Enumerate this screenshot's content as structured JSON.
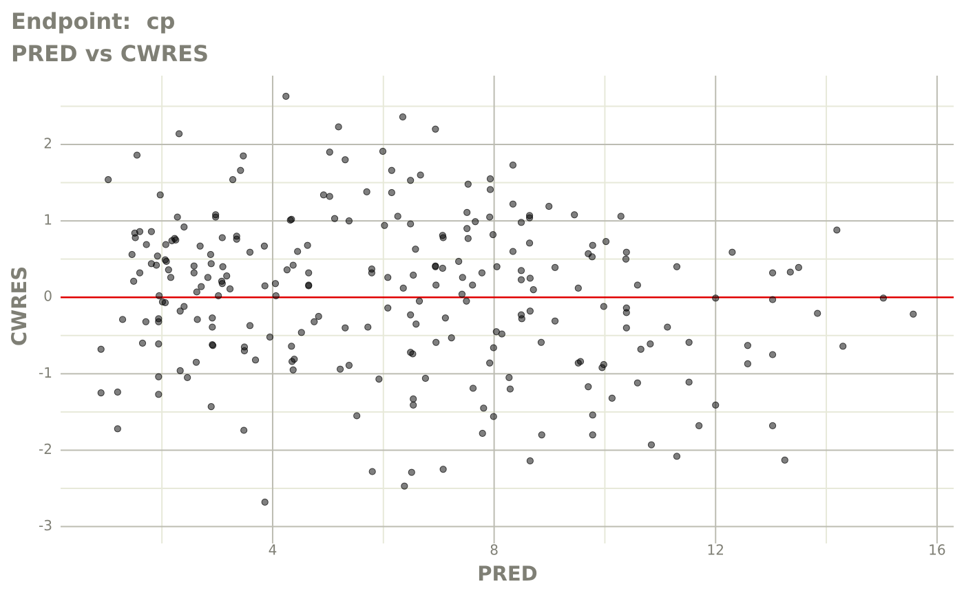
{
  "chart_data": {
    "type": "scatter",
    "title": "Endpoint:  cp",
    "subtitle": "PRED vs CWRES",
    "x_label": "PRED",
    "y_label": "CWRES",
    "color": "#000000",
    "opacity": 0.5,
    "hline": 0,
    "hline_color": "#e00000",
    "grid": true,
    "xlim": [
      0.17,
      16.3
    ],
    "ylim": [
      -3.22,
      2.9
    ],
    "xticks": [
      4,
      8,
      12,
      16
    ],
    "yticks": [
      -3,
      -2,
      -1,
      0,
      1,
      2
    ],
    "x_minor_ticks": [
      2,
      6,
      10,
      14
    ],
    "y_minor_ticks": [
      -2.5,
      -1.5,
      -0.5,
      0.5,
      1.5,
      2.5
    ],
    "x": [
      0.9,
      0.9,
      1.03,
      1.2,
      1.2,
      1.29,
      1.49,
      1.46,
      1.51,
      1.52,
      1.55,
      1.6,
      1.6,
      1.65,
      1.71,
      1.72,
      1.81,
      1.81,
      1.9,
      1.92,
      1.94,
      1.94,
      1.94,
      1.94,
      1.94,
      1.95,
      1.97,
      2.01,
      2.06,
      2.06,
      2.07,
      2.08,
      2.12,
      2.16,
      2.18,
      2.23,
      2.25,
      2.28,
      2.31,
      2.33,
      2.33,
      2.4,
      2.4,
      2.46,
      2.58,
      2.58,
      2.62,
      2.63,
      2.64,
      2.69,
      2.71,
      2.83,
      2.88,
      2.89,
      2.91,
      2.91,
      2.91,
      2.89,
      2.92,
      2.97,
      2.97,
      3.02,
      3.08,
      3.09,
      3.09,
      3.1,
      3.17,
      3.23,
      3.28,
      3.35,
      3.35,
      3.42,
      3.47,
      3.48,
      3.49,
      3.49,
      3.59,
      3.59,
      3.69,
      3.85,
      3.86,
      3.86,
      3.95,
      4.05,
      4.06,
      4.24,
      4.26,
      4.32,
      4.34,
      4.34,
      4.35,
      4.37,
      4.39,
      4.37,
      4.45,
      4.52,
      4.63,
      4.65,
      4.65,
      4.65,
      4.75,
      4.83,
      4.92,
      5.03,
      5.03,
      5.12,
      5.19,
      5.22,
      5.31,
      5.31,
      5.38,
      5.38,
      5.52,
      5.7,
      5.72,
      5.79,
      5.79,
      5.8,
      5.92,
      5.99,
      6.02,
      6.08,
      6.08,
      6.15,
      6.15,
      6.26,
      6.35,
      6.36,
      6.38,
      6.49,
      6.49,
      6.49,
      6.49,
      6.53,
      6.54,
      6.54,
      6.54,
      6.51,
      6.58,
      6.59,
      6.65,
      6.67,
      6.76,
      6.94,
      6.94,
      6.94,
      6.95,
      6.95,
      7.07,
      7.07,
      7.08,
      7.08,
      7.12,
      7.23,
      7.36,
      7.42,
      7.43,
      7.5,
      7.51,
      7.51,
      7.53,
      7.53,
      7.61,
      7.62,
      7.66,
      7.78,
      7.81,
      7.79,
      7.93,
      7.93,
      7.92,
      7.92,
      7.98,
      7.99,
      7.99,
      8.04,
      8.05,
      8.14,
      8.27,
      8.29,
      8.34,
      8.34,
      8.34,
      8.49,
      8.49,
      8.49,
      8.49,
      8.5,
      8.64,
      8.64,
      8.64,
      8.65,
      8.65,
      8.65,
      8.71,
      8.85,
      8.86,
      8.99,
      9.1,
      9.1,
      9.45,
      9.52,
      9.52,
      9.56,
      9.7,
      9.7,
      9.77,
      9.78,
      9.78,
      9.78,
      9.95,
      9.98,
      9.98,
      10.02,
      10.13,
      10.29,
      10.38,
      10.39,
      10.39,
      10.39,
      10.39,
      10.59,
      10.59,
      10.65,
      10.82,
      10.84,
      11.13,
      11.3,
      11.3,
      11.52,
      11.52,
      11.7,
      12.0,
      12.0,
      12.3,
      12.58,
      12.58,
      13.03,
      13.03,
      13.03,
      13.03,
      13.25,
      13.35,
      13.5,
      13.84,
      14.19,
      14.3,
      15.03,
      15.57
    ],
    "values": [
      -0.68,
      -1.25,
      1.54,
      -1.24,
      -1.72,
      -0.29,
      0.21,
      0.56,
      0.84,
      0.78,
      1.86,
      0.86,
      0.32,
      -0.6,
      -0.32,
      0.69,
      0.44,
      0.86,
      0.42,
      0.54,
      -0.28,
      -0.32,
      -0.61,
      -1.04,
      -1.27,
      0.02,
      1.34,
      -0.06,
      -0.07,
      0.49,
      0.69,
      0.47,
      0.36,
      0.26,
      0.74,
      0.77,
      0.75,
      1.05,
      2.14,
      -0.96,
      -0.18,
      -0.12,
      0.92,
      -1.05,
      0.41,
      0.32,
      -0.85,
      0.07,
      -0.29,
      0.67,
      0.14,
      0.26,
      0.56,
      0.44,
      -0.27,
      -0.62,
      -0.39,
      -1.43,
      -0.63,
      1.05,
      1.08,
      0.02,
      0.21,
      0.18,
      0.78,
      0.4,
      0.28,
      0.11,
      1.54,
      0.8,
      0.76,
      1.66,
      1.85,
      -1.74,
      -0.7,
      -0.65,
      -0.37,
      0.59,
      -0.82,
      0.67,
      0.15,
      -2.68,
      -0.52,
      0.18,
      0.02,
      2.63,
      0.36,
      1.01,
      1.02,
      -0.64,
      -0.84,
      0.42,
      -0.81,
      -0.95,
      0.6,
      -0.46,
      0.68,
      0.32,
      0.15,
      0.16,
      -0.32,
      -0.25,
      1.34,
      1.9,
      1.32,
      1.03,
      2.23,
      -0.94,
      1.8,
      -0.4,
      1.0,
      -0.89,
      -1.55,
      1.38,
      -0.39,
      0.37,
      0.32,
      -2.28,
      -1.07,
      1.91,
      0.94,
      0.26,
      -0.14,
      1.66,
      1.37,
      1.06,
      2.36,
      0.12,
      -2.47,
      0.96,
      1.53,
      -0.23,
      -0.72,
      -0.74,
      0.29,
      -1.33,
      -1.41,
      -2.29,
      0.63,
      -0.35,
      -0.05,
      1.6,
      -1.06,
      2.2,
      0.41,
      0.4,
      0.16,
      -0.59,
      0.38,
      0.81,
      0.78,
      -2.25,
      -0.27,
      -0.53,
      0.47,
      0.04,
      0.26,
      -0.05,
      0.9,
      1.11,
      1.48,
      0.77,
      0.16,
      -1.19,
      0.99,
      0.32,
      -1.45,
      -1.78,
      1.55,
      1.41,
      1.05,
      -0.86,
      0.82,
      -1.56,
      -0.66,
      -0.45,
      0.4,
      -0.48,
      -1.05,
      -1.2,
      1.73,
      1.22,
      0.6,
      0.98,
      0.35,
      0.23,
      -0.23,
      -0.28,
      1.07,
      1.04,
      0.71,
      0.25,
      -0.18,
      -2.14,
      0.1,
      -0.59,
      -1.8,
      1.19,
      0.39,
      -0.31,
      1.08,
      0.12,
      -0.86,
      -0.84,
      -1.17,
      0.57,
      0.53,
      0.68,
      -1.54,
      -1.8,
      -0.92,
      -0.88,
      -0.12,
      0.73,
      -1.32,
      1.06,
      0.5,
      0.59,
      -0.14,
      -0.2,
      -0.4,
      0.16,
      -1.12,
      -0.68,
      -0.61,
      -1.93,
      -0.39,
      0.4,
      -2.08,
      -0.59,
      -1.11,
      -1.68,
      -0.01,
      -1.41,
      0.59,
      -0.63,
      -0.87,
      0.32,
      -0.03,
      -0.75,
      -1.68,
      -2.13,
      0.33,
      0.39,
      -0.21,
      0.88,
      -0.64,
      -0.01,
      -0.22
    ]
  }
}
